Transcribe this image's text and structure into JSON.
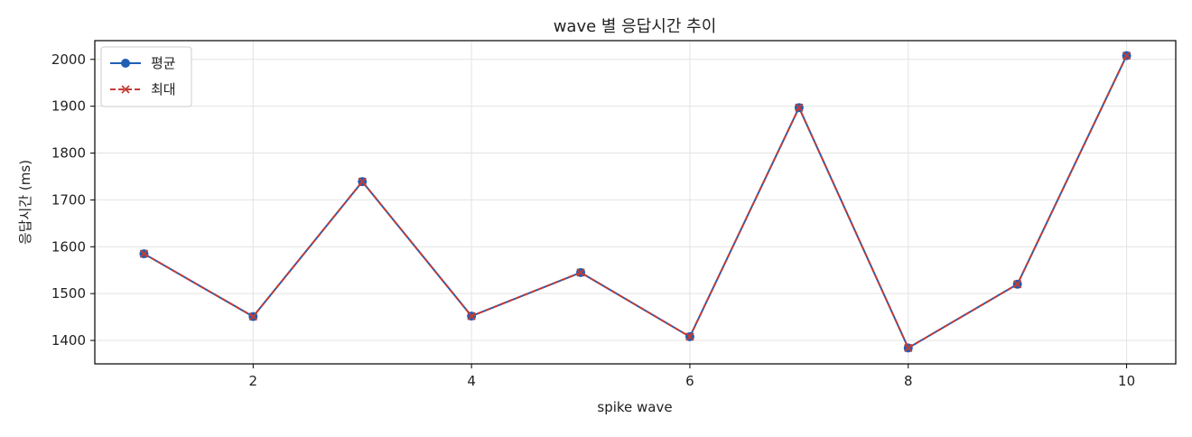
{
  "chart_data": {
    "type": "line",
    "title": "wave 별 응답시간 추이",
    "xlabel": "spike wave",
    "ylabel": "응답시간 (ms)",
    "x": [
      1,
      2,
      3,
      4,
      5,
      6,
      7,
      8,
      9,
      10
    ],
    "xlim": [
      0.55,
      10.45
    ],
    "ylim": [
      1350,
      2040
    ],
    "xticks": [
      2,
      4,
      6,
      8,
      10
    ],
    "yticks": [
      1400,
      1500,
      1600,
      1700,
      1800,
      1900,
      2000
    ],
    "grid": true,
    "legend_position": "top-left",
    "series": [
      {
        "name": "평균",
        "color": "#1f5fb4",
        "style": "solid",
        "marker": "circle",
        "values": [
          1585,
          1451,
          1739,
          1452,
          1545,
          1408,
          1897,
          1384,
          1520,
          2008
        ]
      },
      {
        "name": "최대",
        "color": "#c43c35",
        "style": "dashed",
        "marker": "x",
        "values": [
          1585,
          1451,
          1739,
          1452,
          1545,
          1408,
          1897,
          1384,
          1520,
          2008
        ]
      }
    ]
  }
}
